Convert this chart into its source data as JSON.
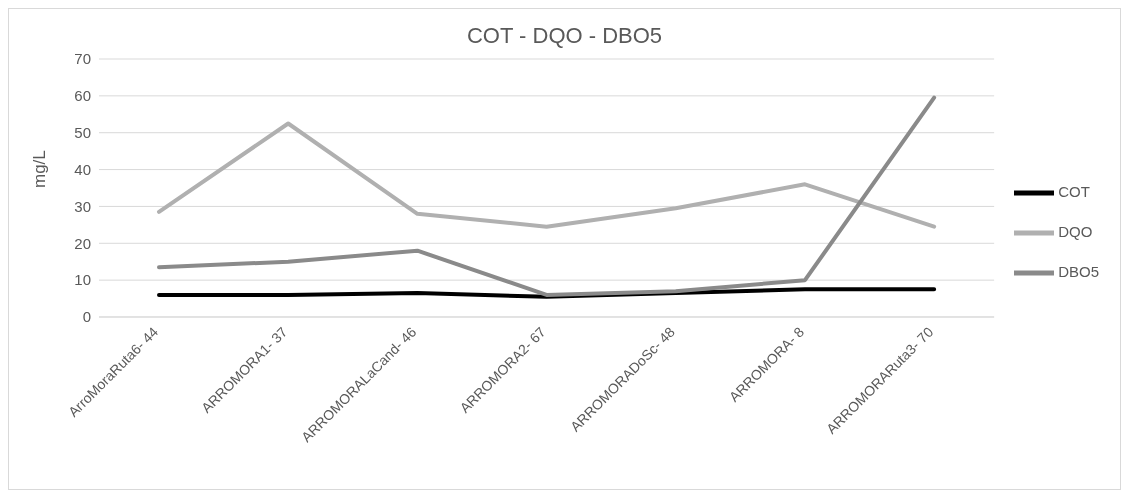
{
  "chart_data": {
    "type": "line",
    "title": "COT - DQO - DBO5",
    "ylabel": "mg/L",
    "categories": [
      "ArroMoraRuta6- 44",
      "ARROMORA1- 37",
      "ARROMORALaCand- 46",
      "ARROMORA2- 67",
      "ARROMORADoSc- 48",
      "ARROMORA- 8",
      "ARROMORARuta3- 70"
    ],
    "series": [
      {
        "name": "COT",
        "color": "#000000",
        "values": [
          6,
          6,
          6.5,
          5.5,
          6.5,
          7.5,
          7.5
        ]
      },
      {
        "name": "DQO",
        "color": "#b0b0b0",
        "values": [
          28.5,
          52.5,
          28,
          24.5,
          29.5,
          36,
          24.5
        ]
      },
      {
        "name": "DBO5",
        "color": "#8a8a8a",
        "values": [
          13.5,
          15,
          18,
          6,
          7,
          10,
          59.5
        ]
      }
    ],
    "ylim": [
      0,
      70
    ],
    "yticks": [
      0,
      10,
      20,
      30,
      40,
      50,
      60,
      70
    ],
    "grid": "y",
    "legend": "right",
    "marker": "none",
    "line_style": "solid"
  }
}
